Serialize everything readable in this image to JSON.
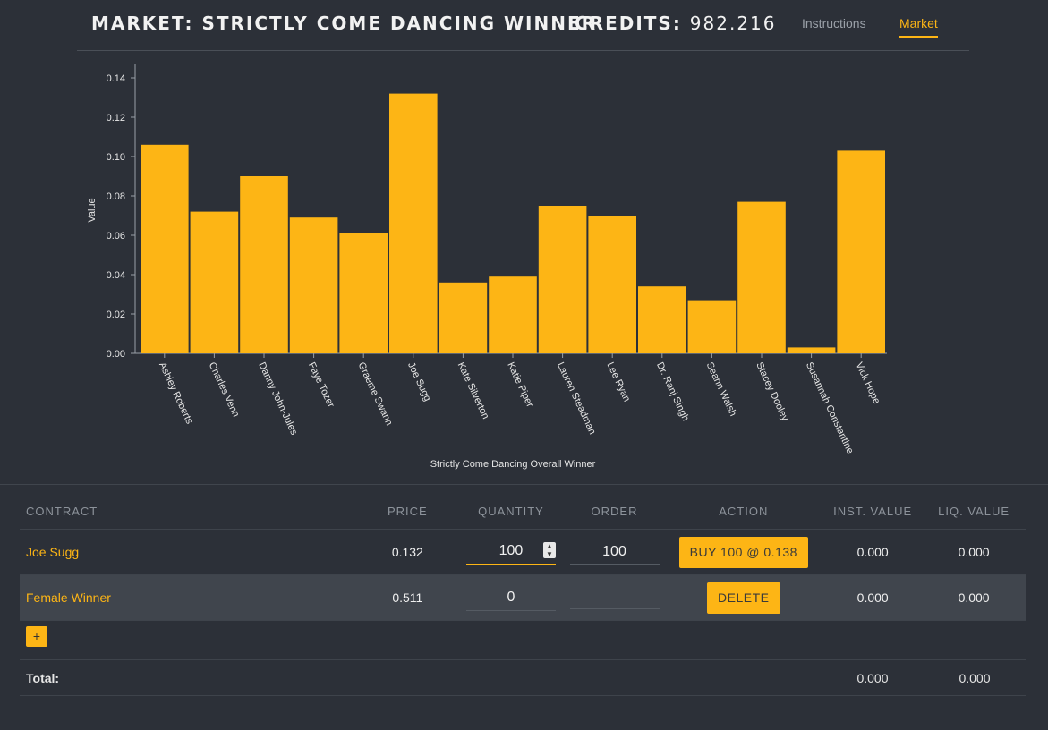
{
  "header": {
    "title": "MARKET: STRICTLY COME DANCING WINNER",
    "credits_label": "CREDITS:",
    "credits_value": "982.216",
    "nav": {
      "instructions": "Instructions",
      "market": "Market"
    }
  },
  "chart_data": {
    "type": "bar",
    "title": "",
    "xlabel": "Strictly Come Dancing Overall Winner",
    "ylabel": "Value",
    "ylim": [
      0,
      0.14
    ],
    "yticks": [
      "0.00",
      "0.02",
      "0.04",
      "0.06",
      "0.08",
      "0.10",
      "0.12",
      "0.14"
    ],
    "categories": [
      "Ashley Roberts",
      "Charles Venn",
      "Danny John-Jules",
      "Faye Tozer",
      "Graeme Swann",
      "Joe Sugg",
      "Kate Silverton",
      "Katie Piper",
      "Lauren Steadman",
      "Lee Ryan",
      "Dr. Ranj Singh",
      "Seann Walsh",
      "Stacey Dooley",
      "Susannah Constantine",
      "Vick Hope"
    ],
    "values": [
      0.106,
      0.072,
      0.09,
      0.069,
      0.061,
      0.132,
      0.036,
      0.039,
      0.075,
      0.07,
      0.034,
      0.027,
      0.077,
      0.003,
      0.103
    ],
    "color": "#fdb515",
    "grid": false
  },
  "table": {
    "headers": {
      "contract": "CONTRACT",
      "price": "PRICE",
      "quantity": "QUANTITY",
      "order": "ORDER",
      "action": "ACTION",
      "inst_value": "INST. VALUE",
      "liq_value": "LIQ. VALUE"
    },
    "rows": [
      {
        "contract": "Joe Sugg",
        "price": "0.132",
        "quantity": "100",
        "order": "100",
        "action": "BUY 100 @ 0.138",
        "inst_value": "0.000",
        "liq_value": "0.000"
      },
      {
        "contract": "Female Winner",
        "price": "0.511",
        "quantity": "0",
        "order": "",
        "action": "DELETE",
        "inst_value": "0.000",
        "liq_value": "0.000"
      }
    ],
    "add_label": "+",
    "total": {
      "label": "Total:",
      "inst_value": "0.000",
      "liq_value": "0.000"
    }
  },
  "colors": {
    "accent": "#fdb515",
    "background": "#2c3038",
    "row_highlight": "#40454d"
  }
}
